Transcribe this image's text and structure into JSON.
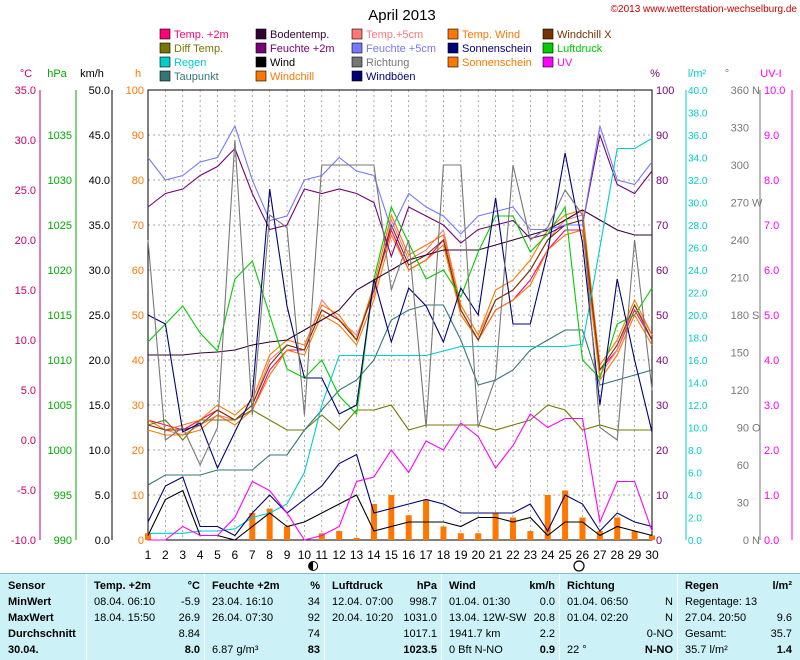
{
  "chart_data": {
    "type": "line",
    "title": "April 2013",
    "copyright": "©2013 www.wetterstation-wechselburg.de",
    "legend": [
      {
        "label": "Temp. +2m",
        "color": "#ff0077"
      },
      {
        "label": "Bodentemp.",
        "color": "#330033"
      },
      {
        "label": "Temp.+5cm",
        "color": "#ff7777"
      },
      {
        "label": "Temp. Wind",
        "color": "#ff7700"
      },
      {
        "label": "Windchill X",
        "color": "#773300"
      },
      {
        "label": "Diff Temp.",
        "color": "#777700"
      },
      {
        "label": "Feuchte +2m",
        "color": "#770077"
      },
      {
        "label": "Feuchte +5cm",
        "color": "#7777ff"
      },
      {
        "label": "Sonnenschein",
        "color": "#000077"
      },
      {
        "label": "Luftdruck",
        "color": "#00cc00"
      },
      {
        "label": "Regen",
        "color": "#00cccc"
      },
      {
        "label": "Wind",
        "color": "#000000"
      },
      {
        "label": "Richtung",
        "color": "#777777"
      },
      {
        "label": "Sonnenschein",
        "color": "#ff7700"
      },
      {
        "label": "UV",
        "color": "#ff00ff"
      },
      {
        "label": "Taupunkt",
        "color": "#337777"
      },
      {
        "label": "Windchill",
        "color": "#ff7700"
      },
      {
        "label": "Windböen",
        "color": "#000077"
      }
    ],
    "axes": {
      "temp": {
        "label": "°C",
        "color": "#cc0066",
        "ticks": [
          "35.0",
          "30.0",
          "25.0",
          "20.0",
          "15.0",
          "10.0",
          "5.0",
          "0.0",
          "-5.0",
          "-10.0"
        ]
      },
      "pressure": {
        "label": "hPa",
        "color": "#00aa00",
        "ticks": [
          "1035",
          "1030",
          "1025",
          "1020",
          "1015",
          "1010",
          "1005",
          "1000",
          "995",
          "990"
        ]
      },
      "wind": {
        "label": "km/h",
        "color": "#000000",
        "ticks": [
          "50.0",
          "45.0",
          "40.0",
          "35.0",
          "30.0",
          "25.0",
          "20.0",
          "15.0",
          "10.0",
          "5.0",
          "0.0"
        ]
      },
      "sun": {
        "label": "h",
        "color": "#ff7700",
        "ticks": [
          "100",
          "90",
          "80",
          "70",
          "60",
          "50",
          "40",
          "30",
          "20",
          "10",
          "0"
        ]
      },
      "humidity": {
        "label": "%",
        "color": "#770077",
        "ticks": [
          "100",
          "90",
          "80",
          "70",
          "60",
          "50",
          "40",
          "30",
          "20",
          "10",
          "0"
        ]
      },
      "rain": {
        "label": "l/m²",
        "color": "#00cccc",
        "ticks": [
          "40.0",
          "38.0",
          "36.0",
          "34.0",
          "32.0",
          "30.0",
          "28.0",
          "26.0",
          "24.0",
          "22.0",
          "20.0",
          "18.0",
          "16.0",
          "14.0",
          "12.0",
          "10.0",
          "8.0",
          "6.0",
          "4.0",
          "2.0",
          "0.0"
        ]
      },
      "direction": {
        "label": "°",
        "color": "#777777",
        "ticks": [
          "360",
          "330",
          "300",
          "270",
          "240",
          "210",
          "180",
          "150",
          "120",
          "90",
          "60",
          "30",
          "0"
        ],
        "compass": [
          "N",
          "",
          "",
          "W",
          "",
          "",
          "S",
          "",
          "",
          "O",
          "",
          "",
          "N"
        ]
      },
      "uv": {
        "label": "UV-I",
        "color": "#ff00ff",
        "ticks": [
          "10.0",
          "9.0",
          "8.0",
          "7.0",
          "6.0",
          "5.0",
          "4.0",
          "3.0",
          "2.0",
          "1.0",
          "0.0"
        ]
      }
    },
    "x": [
      1,
      2,
      3,
      4,
      5,
      6,
      7,
      8,
      9,
      10,
      11,
      12,
      13,
      14,
      15,
      16,
      17,
      18,
      19,
      20,
      21,
      22,
      23,
      24,
      25,
      26,
      27,
      28,
      29,
      30
    ],
    "moon_phases": [
      {
        "day": 10.5,
        "phase": "full"
      },
      {
        "day": 25.8,
        "phase": "new"
      }
    ],
    "series": [
      {
        "name": "Temp. +2m",
        "axis": "temp",
        "color": "#ff0077",
        "values": [
          2.0,
          1.5,
          1.0,
          2.0,
          3.0,
          2.0,
          3.0,
          7.0,
          9.0,
          9.0,
          13.0,
          12.0,
          10.0,
          15.0,
          21.0,
          17.0,
          18.0,
          20.0,
          13.0,
          10.0,
          13.0,
          14.0,
          16.0,
          19.0,
          21.0,
          21.0,
          7.0,
          9.0,
          13.0,
          10.0
        ]
      },
      {
        "name": "Temp.+5cm",
        "axis": "temp",
        "color": "#ff7777",
        "values": [
          1.5,
          1.0,
          0.5,
          1.5,
          2.5,
          2.0,
          3.5,
          8.0,
          9.5,
          9.0,
          14.0,
          12.0,
          10.5,
          14.5,
          22.0,
          18.0,
          19.0,
          21.0,
          13.5,
          10.5,
          14.0,
          15.0,
          17.0,
          20.0,
          22.0,
          22.5,
          6.5,
          9.0,
          13.5,
          10.5
        ]
      },
      {
        "name": "Temp. Wind",
        "axis": "temp",
        "color": "#ff7700",
        "values": [
          2.0,
          1.0,
          1.5,
          2.0,
          3.5,
          2.5,
          4.0,
          8.5,
          10.0,
          9.5,
          13.5,
          12.5,
          10.0,
          15.5,
          22.5,
          18.5,
          19.5,
          20.5,
          13.5,
          10.5,
          15.0,
          16.0,
          18.0,
          21.0,
          22.5,
          23.0,
          7.5,
          10.0,
          14.0,
          10.5
        ]
      },
      {
        "name": "Windchill",
        "axis": "temp",
        "color": "#ff7700",
        "values": [
          1.0,
          0.5,
          0.5,
          1.0,
          2.5,
          1.5,
          3.0,
          6.5,
          9.0,
          8.5,
          12.5,
          11.5,
          9.5,
          14.0,
          20.5,
          17.0,
          18.0,
          19.5,
          12.5,
          10.0,
          13.0,
          14.0,
          15.5,
          19.0,
          20.5,
          21.0,
          6.0,
          8.5,
          12.5,
          9.5
        ]
      },
      {
        "name": "Windchill X",
        "axis": "temp",
        "color": "#773300",
        "values": [
          1.5,
          1.0,
          1.0,
          1.5,
          3.0,
          2.0,
          3.5,
          7.5,
          9.5,
          9.0,
          13.0,
          12.0,
          10.0,
          15.0,
          21.5,
          17.5,
          18.5,
          20.0,
          13.0,
          10.0,
          14.0,
          15.0,
          17.0,
          20.0,
          21.5,
          22.0,
          7.0,
          9.5,
          13.5,
          10.0
        ]
      },
      {
        "name": "Bodentemp.",
        "axis": "temp",
        "color": "#330033",
        "values": [
          8.5,
          8.5,
          8.5,
          8.7,
          8.8,
          9.0,
          9.5,
          9.8,
          10.0,
          11.0,
          12.0,
          13.0,
          15.0,
          16.0,
          17.0,
          18.0,
          18.5,
          19.0,
          19.0,
          19.0,
          19.5,
          20.0,
          20.5,
          21.0,
          22.0,
          23.0,
          22.0,
          21.0,
          20.5,
          20.5
        ]
      },
      {
        "name": "Diff Temp.",
        "axis": "temp",
        "color": "#777700",
        "values": [
          1.5,
          2.0,
          0.0,
          2.0,
          2.0,
          2.0,
          3.0,
          2.0,
          1.0,
          1.0,
          2.5,
          1.0,
          3.0,
          3.0,
          3.5,
          1.0,
          1.5,
          1.5,
          1.5,
          1.5,
          1.0,
          1.5,
          2.0,
          3.5,
          3.0,
          1.0,
          1.5,
          1.0,
          1.0,
          1.0
        ]
      },
      {
        "name": "Taupunkt",
        "axis": "temp",
        "color": "#337777",
        "values": [
          -4.5,
          -3.5,
          -3.5,
          -3.5,
          -3.0,
          -3.0,
          -3.0,
          -1.5,
          -1.5,
          1.0,
          3.0,
          5.0,
          6.0,
          8.0,
          12.0,
          13.0,
          13.5,
          13.5,
          10.0,
          5.5,
          6.0,
          7.0,
          9.0,
          10.0,
          11.0,
          11.0,
          5.5,
          6.0,
          6.5,
          7.0
        ]
      },
      {
        "name": "Feuchte +2m",
        "axis": "humidity",
        "color": "#770077",
        "values": [
          74,
          77,
          78,
          81,
          83,
          87,
          77,
          69,
          70,
          78,
          77,
          78,
          77,
          75,
          63,
          74,
          72,
          70,
          66,
          69,
          70,
          71,
          67,
          68,
          70,
          70,
          90,
          79,
          77,
          82
        ]
      },
      {
        "name": "Feuchte +5cm",
        "axis": "humidity",
        "color": "#7777ff",
        "values": [
          85,
          80,
          81,
          84,
          85,
          92,
          80,
          71,
          72,
          80,
          81,
          85,
          82,
          81,
          69,
          77,
          74,
          72,
          68,
          72,
          73,
          74,
          69,
          69,
          70,
          70,
          92,
          80,
          79,
          84
        ]
      },
      {
        "name": "Luftdruck",
        "axis": "pressure",
        "color": "#00cc00",
        "values": [
          1012,
          1014,
          1016,
          1013,
          1011,
          1019,
          1021,
          1015,
          1009,
          1008,
          1010,
          1006,
          1004,
          1019,
          1027,
          1023,
          1019,
          1020,
          1017,
          1022,
          1026,
          1026,
          1022,
          1024,
          1027,
          1010,
          1008,
          1014,
          1015,
          1018
        ]
      },
      {
        "name": "Regen",
        "axis": "rain",
        "color": "#00cccc",
        "values": [
          0.6,
          0.6,
          0.6,
          0.8,
          0.8,
          1.0,
          2.0,
          2.4,
          3.2,
          6.0,
          12.0,
          16.4,
          16.4,
          16.4,
          16.4,
          16.4,
          16.4,
          16.8,
          17.2,
          17.2,
          17.2,
          17.2,
          17.2,
          17.2,
          17.2,
          17.4,
          26.0,
          34.8,
          34.8,
          35.7
        ]
      },
      {
        "name": "Wind",
        "axis": "wind",
        "color": "#000000",
        "values": [
          0.5,
          4.5,
          5.5,
          0.5,
          0.5,
          0.0,
          1.5,
          3.0,
          1.5,
          2.0,
          3.0,
          4.0,
          5.0,
          1.0,
          1.5,
          2.0,
          2.0,
          2.0,
          1.5,
          2.5,
          2.5,
          2.0,
          2.5,
          0.5,
          2.0,
          2.0,
          0.5,
          1.5,
          1.0,
          0.5
        ]
      },
      {
        "name": "Windböen",
        "axis": "wind",
        "color": "#000077",
        "values": [
          2.0,
          6.0,
          7.0,
          1.5,
          1.5,
          0.5,
          3.0,
          5.0,
          3.0,
          4.5,
          6.0,
          8.5,
          9.5,
          3.0,
          3.5,
          4.0,
          4.5,
          4.0,
          3.0,
          3.0,
          3.0,
          3.0,
          4.0,
          1.0,
          5.0,
          4.0,
          1.0,
          3.0,
          2.0,
          1.5
        ]
      },
      {
        "name": "Sonnenschein",
        "axis": "wind",
        "color": "#000077",
        "values": [
          25,
          24,
          12,
          13,
          8,
          12,
          16,
          39,
          26,
          18,
          18,
          14,
          15,
          29,
          22,
          28,
          26,
          22,
          28,
          25,
          38,
          24,
          24,
          32,
          43,
          33,
          15,
          29,
          20,
          12
        ]
      },
      {
        "name": "Richtung",
        "axis": "direction",
        "color": "#777777",
        "values": [
          240,
          80,
          90,
          60,
          90,
          320,
          100,
          260,
          250,
          100,
          300,
          300,
          300,
          300,
          200,
          240,
          90,
          300,
          300,
          90,
          130,
          300,
          240,
          250,
          280,
          260,
          90,
          80,
          240,
          120
        ]
      },
      {
        "name": "UV",
        "axis": "uv",
        "color": "#ff00ff",
        "values": [
          0.0,
          0.0,
          0.3,
          0.1,
          0.1,
          0.5,
          1.3,
          1.1,
          0.6,
          0.0,
          0.1,
          0.3,
          1.3,
          1.4,
          2.0,
          1.5,
          2.2,
          2.0,
          2.6,
          2.3,
          1.6,
          2.1,
          2.8,
          2.5,
          2.7,
          2.7,
          0.4,
          1.3,
          1.3,
          0.2
        ]
      },
      {
        "name": "Sonnenschein",
        "axis": "sun",
        "color": "#ff7700",
        "type": "bar",
        "values": [
          1.5,
          0,
          0,
          0,
          0,
          0,
          6,
          7,
          3,
          0,
          1.5,
          2,
          0.5,
          8,
          10,
          5.5,
          9,
          3,
          1.5,
          1.5,
          6,
          5,
          2,
          10,
          11,
          5,
          2,
          5,
          2,
          1
        ]
      }
    ]
  },
  "stats": {
    "columns": [
      {
        "header": "Sensor",
        "unit": ""
      },
      {
        "header": "Temp. +2m",
        "unit": "°C"
      },
      {
        "header": "Feuchte +2m",
        "unit": "%"
      },
      {
        "header": "Luftdruck",
        "unit": "hPa"
      },
      {
        "header": "Wind",
        "unit": "km/h"
      },
      {
        "header": "Richtung",
        "unit": ""
      },
      {
        "header": "Regen",
        "unit": "l/m²"
      }
    ],
    "row_labels": [
      "MinWert",
      "MaxWert",
      "Durchschnitt",
      "30.04."
    ],
    "temp": [
      [
        "08.04.  06:10",
        "-5.9"
      ],
      [
        "18.04.  15:50",
        "26.9"
      ],
      [
        "",
        "8.84"
      ],
      [
        "",
        "8.0"
      ]
    ],
    "humidity": [
      [
        "23.04.  16:10",
        "34"
      ],
      [
        "26.04.  07:30",
        "92"
      ],
      [
        "",
        "74"
      ],
      [
        "6.87 g/m³",
        "83"
      ]
    ],
    "pressure": [
      [
        "12.04.  07:00",
        "998.7"
      ],
      [
        "20.04.  10:20",
        "1031.0"
      ],
      [
        "",
        "1017.1"
      ],
      [
        "",
        "1023.5"
      ]
    ],
    "wind": [
      [
        "01.04.  01:30",
        "0.0"
      ],
      [
        "13.04.  12W-SW",
        "20.8"
      ],
      [
        "1941.7 km",
        "2.2"
      ],
      [
        "0 Bft N-NO",
        "0.9"
      ]
    ],
    "direction": [
      [
        "01.04.  06:50",
        "N"
      ],
      [
        "01.04.  02:20",
        "N"
      ],
      [
        "",
        "0-NO"
      ],
      [
        "22 °",
        "N-NO"
      ]
    ],
    "rain": [
      [
        "Regentage: 13",
        ""
      ],
      [
        "27.04.  20:50",
        "9.6"
      ],
      [
        "Gesamt:",
        "35.7"
      ],
      [
        "35.7 l/m²",
        "1.4"
      ]
    ]
  }
}
